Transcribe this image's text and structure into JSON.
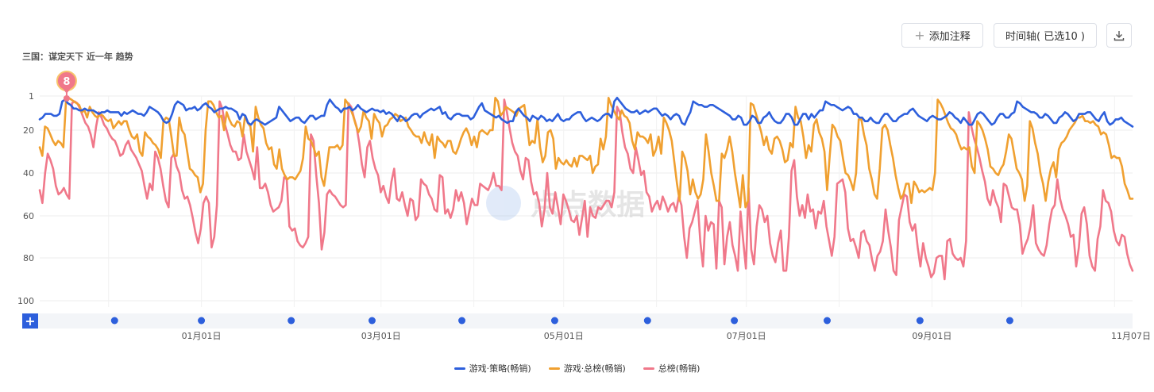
{
  "header": {
    "title": "三国：谋定天下 近一年 趋势",
    "add_note_label": "添加注释",
    "timeline_label": "时间轴( 已选10 )",
    "download_icon": "download-icon",
    "plus_icon": "plus-icon"
  },
  "watermark": "点点数据",
  "marker_label": "8",
  "chart_data": {
    "type": "line",
    "title": "三国：谋定天下 近一年 趋势",
    "ylim": [
      1,
      100
    ],
    "y_inverted": true,
    "y_ticks": [
      "1",
      "20",
      "40",
      "60",
      "80",
      "100"
    ],
    "x_ticks": [
      "01月01日",
      "03月01日",
      "05月01日",
      "07月01日",
      "09月01日",
      "11月07日"
    ],
    "x_range": [
      "2023-11-08",
      "2024-11-07"
    ],
    "grid": true,
    "legend_position": "bottom",
    "series": [
      {
        "name": "游戏·策略(畅销)",
        "color": "#2d5fdc",
        "values": [
          14,
          13,
          11,
          11,
          11,
          12,
          12,
          11,
          4,
          3,
          5,
          6,
          8,
          8,
          9,
          9,
          8,
          9,
          9,
          9,
          10,
          11,
          10,
          10,
          9,
          10,
          10,
          10,
          10,
          12,
          10,
          11,
          10,
          9,
          10,
          11,
          11,
          12,
          10,
          7,
          8,
          9,
          10,
          12,
          15,
          16,
          15,
          11,
          6,
          4,
          5,
          6,
          9,
          8,
          8,
          7,
          9,
          8,
          6,
          5,
          7,
          8,
          10,
          9,
          8,
          8,
          7,
          8,
          8,
          9,
          10,
          14,
          11,
          12,
          16,
          17,
          15,
          14,
          15,
          16,
          17,
          16,
          15,
          14,
          13,
          7,
          9,
          11,
          13,
          15,
          14,
          13,
          13,
          15,
          16,
          14,
          12,
          12,
          14,
          13,
          12,
          12,
          6,
          3,
          5,
          7,
          8,
          10,
          8,
          8,
          7,
          9,
          8,
          6,
          8,
          9,
          10,
          9,
          8,
          9,
          9,
          10,
          9,
          11,
          10,
          11,
          13,
          15,
          12,
          13,
          15,
          14,
          12,
          11,
          11,
          13,
          11,
          10,
          9,
          8,
          9,
          8,
          7,
          11,
          10,
          13,
          14,
          12,
          11,
          11,
          12,
          12,
          12,
          14,
          13,
          10,
          7,
          5,
          9,
          10,
          11,
          12,
          13,
          12,
          14,
          15,
          16,
          15,
          15,
          10,
          8,
          10,
          12,
          13,
          15,
          12,
          13,
          14,
          12,
          13,
          15,
          14,
          15,
          13,
          11,
          14,
          15,
          14,
          14,
          12,
          11,
          10,
          10,
          13,
          15,
          14,
          13,
          14,
          15,
          14,
          12,
          11,
          11,
          13,
          4,
          2,
          4,
          6,
          8,
          9,
          10,
          10,
          9,
          11,
          10,
          9,
          10,
          9,
          8,
          8,
          10,
          12,
          11,
          12,
          14,
          12,
          11,
          12,
          16,
          17,
          13,
          10,
          4,
          5,
          6,
          6,
          7,
          7,
          6,
          6,
          7,
          8,
          9,
          10,
          11,
          12,
          14,
          14,
          12,
          13,
          17,
          17,
          15,
          12,
          13,
          16,
          16,
          13,
          12,
          10,
          13,
          15,
          16,
          16,
          14,
          11,
          11,
          13,
          17,
          17,
          14,
          11,
          11,
          14,
          11,
          13,
          11,
          9,
          9,
          4,
          5,
          6,
          6,
          7,
          8,
          9,
          8,
          7,
          8,
          11,
          11,
          13,
          13,
          15,
          15,
          13,
          15,
          16,
          16,
          13,
          11,
          11,
          13,
          15,
          15,
          13,
          12,
          11,
          11,
          9,
          8,
          10,
          12,
          13,
          14,
          15,
          13,
          12,
          13,
          14,
          14,
          13,
          12,
          10,
          11,
          13,
          14,
          16,
          13,
          15,
          17,
          17,
          14,
          11,
          10,
          11,
          13,
          15,
          17,
          16,
          13,
          11,
          11,
          13,
          13,
          11,
          10,
          4,
          5,
          7,
          8,
          9,
          10,
          10,
          11,
          13,
          13,
          11,
          12,
          14,
          16,
          16,
          13,
          12,
          10,
          11,
          13,
          15,
          14,
          11,
          11,
          11,
          10,
          10,
          12,
          14,
          15,
          12,
          10,
          15,
          17,
          16,
          14,
          14,
          13,
          15,
          16,
          17,
          18
        ]
      },
      {
        "name": "游戏·总榜(畅销)",
        "color": "#f0a030",
        "values": [
          28,
          32,
          18,
          19,
          22,
          25,
          27,
          25,
          26,
          28,
          3,
          2,
          3,
          4,
          5,
          6,
          10,
          9,
          13,
          7,
          10,
          12,
          13,
          11,
          12,
          14,
          15,
          14,
          19,
          17,
          15,
          17,
          15,
          15,
          20,
          23,
          24,
          22,
          30,
          32,
          21,
          23,
          24,
          26,
          27,
          29,
          33,
          15,
          13,
          14,
          23,
          32,
          32,
          13,
          20,
          22,
          30,
          38,
          39,
          41,
          42,
          49,
          45,
          20,
          4,
          4,
          6,
          10,
          13,
          12,
          20,
          10,
          14,
          17,
          18,
          15,
          16,
          23,
          12,
          16,
          18,
          30,
          7,
          13,
          17,
          19,
          26,
          29,
          28,
          36,
          38,
          29,
          38,
          41,
          43,
          42,
          42,
          43,
          41,
          39,
          33,
          18,
          24,
          25,
          28,
          32,
          30,
          42,
          46,
          37,
          28,
          28,
          28,
          27,
          29,
          27,
          3,
          5,
          8,
          12,
          17,
          21,
          18,
          9,
          13,
          15,
          24,
          11,
          14,
          16,
          23,
          18,
          17,
          14,
          13,
          11,
          12,
          15,
          14,
          13,
          18,
          20,
          22,
          23,
          23,
          26,
          21,
          25,
          27,
          22,
          33,
          23,
          25,
          26,
          28,
          25,
          25,
          30,
          31,
          28,
          24,
          21,
          19,
          22,
          27,
          23,
          28,
          21,
          20,
          21,
          22,
          20,
          20,
          2,
          4,
          12,
          10,
          7,
          8,
          9,
          10,
          12,
          8,
          7,
          6,
          16,
          27,
          25,
          26,
          14,
          28,
          35,
          32,
          21,
          20,
          24,
          38,
          33,
          35,
          36,
          34,
          36,
          37,
          33,
          37,
          32,
          32,
          33,
          34,
          32,
          40,
          37,
          36,
          24,
          29,
          23,
          2,
          6,
          9,
          12,
          14,
          9,
          12,
          13,
          16,
          25,
          29,
          21,
          23,
          23,
          24,
          26,
          22,
          32,
          29,
          23,
          31,
          13,
          16,
          20,
          25,
          35,
          45,
          53,
          30,
          33,
          39,
          50,
          43,
          49,
          52,
          50,
          43,
          22,
          30,
          40,
          46,
          53,
          53,
          31,
          33,
          29,
          23,
          30,
          40,
          48,
          56,
          41,
          56,
          53,
          5,
          6,
          11,
          16,
          21,
          27,
          23,
          29,
          31,
          24,
          23,
          25,
          29,
          35,
          34,
          26,
          28,
          7,
          13,
          15,
          23,
          33,
          27,
          30,
          17,
          14,
          21,
          24,
          30,
          48,
          32,
          17,
          19,
          23,
          25,
          33,
          40,
          41,
          44,
          48,
          40,
          14,
          14,
          22,
          27,
          38,
          43,
          50,
          52,
          38,
          19,
          17,
          20,
          27,
          33,
          41,
          47,
          52,
          50,
          45,
          45,
          54,
          44,
          46,
          49,
          48,
          49,
          48,
          47,
          48,
          40,
          3,
          5,
          8,
          12,
          16,
          19,
          20,
          22,
          26,
          29,
          28,
          29,
          28,
          37,
          40,
          15,
          17,
          20,
          24,
          29,
          37,
          38,
          40,
          41,
          38,
          36,
          30,
          22,
          24,
          31,
          38,
          40,
          43,
          53,
          46,
          15,
          19,
          26,
          31,
          40,
          45,
          53,
          44,
          38,
          35,
          42,
          29,
          26,
          25,
          23,
          20,
          18,
          16,
          13,
          13,
          12,
          15,
          15,
          16,
          15,
          17,
          18,
          22,
          21,
          22,
          27,
          33,
          32,
          33,
          33,
          37,
          45,
          48,
          52,
          52
        ]
      },
      {
        "name": "总榜(畅销)",
        "color": "#f0788a",
        "values": [
          48,
          54,
          40,
          31,
          34,
          38,
          46,
          50,
          49,
          47,
          50,
          52,
          5,
          4,
          5,
          8,
          12,
          16,
          18,
          22,
          28,
          18,
          10,
          13,
          17,
          19,
          22,
          24,
          25,
          28,
          32,
          31,
          27,
          25,
          29,
          31,
          33,
          36,
          39,
          46,
          52,
          45,
          48,
          30,
          33,
          38,
          46,
          53,
          56,
          33,
          31,
          37,
          40,
          48,
          52,
          51,
          55,
          61,
          68,
          73,
          66,
          54,
          51,
          54,
          75,
          70,
          55,
          4,
          8,
          17,
          22,
          27,
          30,
          30,
          34,
          33,
          22,
          30,
          34,
          38,
          43,
          28,
          47,
          47,
          45,
          49,
          55,
          58,
          57,
          56,
          53,
          42,
          43,
          65,
          67,
          66,
          72,
          74,
          75,
          73,
          70,
          22,
          25,
          41,
          54,
          76,
          68,
          50,
          48,
          50,
          51,
          53,
          55,
          56,
          55,
          5,
          7,
          13,
          18,
          26,
          36,
          42,
          28,
          25,
          33,
          38,
          41,
          49,
          46,
          51,
          54,
          44,
          38,
          52,
          53,
          49,
          55,
          60,
          52,
          53,
          62,
          60,
          43,
          45,
          46,
          50,
          52,
          57,
          58,
          41,
          42,
          59,
          57,
          61,
          57,
          48,
          53,
          49,
          54,
          64,
          58,
          52,
          55,
          55,
          45,
          46,
          47,
          48,
          45,
          40,
          46,
          46,
          48,
          3,
          10,
          19,
          26,
          30,
          32,
          39,
          43,
          33,
          34,
          44,
          50,
          49,
          54,
          65,
          57,
          40,
          56,
          59,
          49,
          56,
          64,
          50,
          53,
          57,
          62,
          63,
          60,
          69,
          61,
          53,
          70,
          56,
          60,
          61,
          56,
          57,
          55,
          53,
          53,
          56,
          49,
          7,
          10,
          21,
          28,
          31,
          38,
          40,
          28,
          34,
          41,
          39,
          49,
          51,
          58,
          55,
          53,
          57,
          51,
          54,
          58,
          55,
          54,
          58,
          51,
          55,
          70,
          80,
          66,
          63,
          58,
          53,
          72,
          84,
          60,
          67,
          63,
          64,
          85,
          53,
          56,
          83,
          70,
          63,
          74,
          79,
          86,
          58,
          72,
          85,
          47,
          76,
          83,
          65,
          55,
          57,
          63,
          60,
          73,
          79,
          82,
          73,
          67,
          86,
          86,
          70,
          39,
          34,
          51,
          60,
          55,
          61,
          50,
          58,
          57,
          66,
          58,
          59,
          53,
          65,
          72,
          79,
          70,
          45,
          44,
          43,
          49,
          66,
          72,
          71,
          75,
          80,
          68,
          67,
          72,
          74,
          81,
          86,
          79,
          77,
          72,
          57,
          67,
          75,
          86,
          88,
          62,
          56,
          50,
          51,
          63,
          67,
          64,
          75,
          84,
          73,
          80,
          84,
          89,
          87,
          80,
          79,
          79,
          90,
          72,
          71,
          78,
          80,
          81,
          80,
          84,
          72,
          10,
          18,
          24,
          28,
          33,
          39,
          44,
          52,
          55,
          48,
          53,
          56,
          63,
          45,
          46,
          51,
          56,
          57,
          57,
          64,
          78,
          74,
          71,
          65,
          55,
          73,
          76,
          78,
          79,
          74,
          64,
          57,
          55,
          43,
          52,
          57,
          60,
          64,
          70,
          69,
          84,
          75,
          59,
          56,
          64,
          79,
          84,
          86,
          71,
          65,
          48,
          53,
          54,
          58,
          67,
          72,
          74,
          69,
          70,
          78,
          83,
          86
        ]
      }
    ],
    "annotations": [
      {
        "label": "8",
        "date": "2023-11-17"
      }
    ]
  }
}
